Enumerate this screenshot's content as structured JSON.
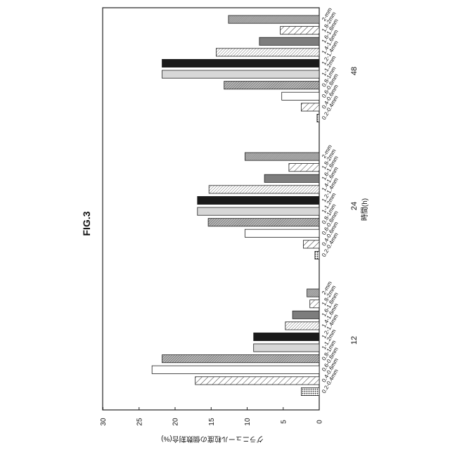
{
  "figure_label": "FIG.3",
  "chart_data": {
    "type": "bar",
    "orientation": "horizontal",
    "xlabel": "時間(h)",
    "ylabel": "グラニュール粒度の個数割合(%)",
    "ylim": [
      0,
      30
    ],
    "ticks": [
      0,
      5,
      10,
      15,
      20,
      25,
      30
    ],
    "grid": false,
    "legend": "none",
    "groups": [
      {
        "name": "12",
        "bars": [
          {
            "category": "0.2-0.4mm",
            "value": 2.5,
            "pattern": "dots"
          },
          {
            "category": "0.4-0.6mm",
            "value": 17.2,
            "pattern": "diag-wide"
          },
          {
            "category": "0.6-0.8mm",
            "value": 23.2,
            "pattern": "white"
          },
          {
            "category": "0.8-1mm",
            "value": 21.8,
            "pattern": "diag-dense"
          },
          {
            "category": "1-1.2mm",
            "value": 9.1,
            "pattern": "light-gray"
          },
          {
            "category": "1.2-1.4mm",
            "value": 9.1,
            "pattern": "black"
          },
          {
            "category": "1.4-1.6mm",
            "value": 4.7,
            "pattern": "diag-light"
          },
          {
            "category": "1.6-1.8mm",
            "value": 3.7,
            "pattern": "gray"
          },
          {
            "category": "1.8-2mm",
            "value": 1.3,
            "pattern": "diag-wide"
          },
          {
            "category": "2-mm",
            "value": 1.7,
            "pattern": "mid-gray"
          }
        ]
      },
      {
        "name": "24",
        "bars": [
          {
            "category": "0.2-0.4mm",
            "value": 0.6,
            "pattern": "dots"
          },
          {
            "category": "0.4-0.6mm",
            "value": 2.2,
            "pattern": "diag-wide"
          },
          {
            "category": "0.6-0.8mm",
            "value": 10.3,
            "pattern": "white"
          },
          {
            "category": "0.8-1mm",
            "value": 15.4,
            "pattern": "diag-dense"
          },
          {
            "category": "1-1.2mm",
            "value": 16.9,
            "pattern": "light-gray"
          },
          {
            "category": "1.2-1.4mm",
            "value": 16.9,
            "pattern": "black"
          },
          {
            "category": "1.4-1.6mm",
            "value": 15.3,
            "pattern": "diag-light"
          },
          {
            "category": "1.6-1.8mm",
            "value": 7.6,
            "pattern": "gray"
          },
          {
            "category": "1.8-2mm",
            "value": 4.2,
            "pattern": "diag-wide"
          },
          {
            "category": "2-mm",
            "value": 10.3,
            "pattern": "mid-gray"
          }
        ]
      },
      {
        "name": "48",
        "bars": [
          {
            "category": "0.2-0.4mm",
            "value": 0.3,
            "pattern": "dots"
          },
          {
            "category": "0.4-0.6mm",
            "value": 2.5,
            "pattern": "diag-wide"
          },
          {
            "category": "0.6-0.8mm",
            "value": 5.2,
            "pattern": "white"
          },
          {
            "category": "0.8-1mm",
            "value": 13.2,
            "pattern": "diag-dense"
          },
          {
            "category": "1-1.2mm",
            "value": 21.8,
            "pattern": "light-gray"
          },
          {
            "category": "1.2-1.4mm",
            "value": 21.8,
            "pattern": "black"
          },
          {
            "category": "1.4-1.6mm",
            "value": 14.3,
            "pattern": "diag-light"
          },
          {
            "category": "1.6-1.8mm",
            "value": 8.3,
            "pattern": "gray"
          },
          {
            "category": "1.8-2mm",
            "value": 5.4,
            "pattern": "diag-wide"
          },
          {
            "category": "2-mm",
            "value": 12.6,
            "pattern": "mid-gray"
          }
        ]
      }
    ],
    "colors": {
      "black": "#1a1a1a",
      "light-gray": "#d7d7d7",
      "gray": "#7d7d7d",
      "mid-gray": "#a9a9a9",
      "white": "#ffffff",
      "outline": "#222222"
    }
  }
}
